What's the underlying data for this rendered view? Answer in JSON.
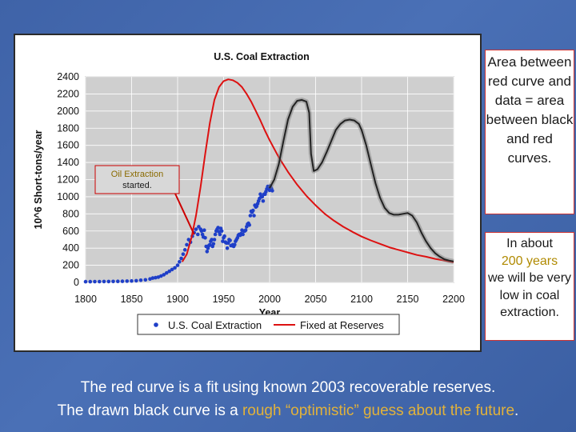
{
  "chart_data": {
    "type": "line",
    "title": "U.S. Coal Extraction",
    "xlabel": "Year",
    "ylabel": "10^6 Short-tons/year",
    "xlim": [
      1800,
      2200
    ],
    "ylim": [
      0,
      2400
    ],
    "xticks": [
      "1800",
      "1850",
      "1900",
      "1950",
      "2000",
      "2050",
      "2100",
      "2150",
      "2200"
    ],
    "yticks": [
      "0",
      "200",
      "400",
      "600",
      "800",
      "1000",
      "1200",
      "1400",
      "1600",
      "1800",
      "2000",
      "2200",
      "2400"
    ],
    "grid": true,
    "legend_position": "bottom",
    "annotation": {
      "label": "Oil Extraction started.",
      "x": 1918,
      "y": 560,
      "color": "#cc0000"
    },
    "series": [
      {
        "name": "U.S. Coal Extraction",
        "style": "points",
        "color": "#1f3fc8",
        "points": [
          [
            1800,
            8
          ],
          [
            1805,
            8
          ],
          [
            1810,
            9
          ],
          [
            1815,
            9
          ],
          [
            1820,
            10
          ],
          [
            1825,
            10
          ],
          [
            1830,
            11
          ],
          [
            1835,
            12
          ],
          [
            1840,
            13
          ],
          [
            1845,
            15
          ],
          [
            1850,
            17
          ],
          [
            1855,
            20
          ],
          [
            1860,
            25
          ],
          [
            1865,
            30
          ],
          [
            1870,
            40
          ],
          [
            1873,
            50
          ],
          [
            1876,
            55
          ],
          [
            1879,
            62
          ],
          [
            1882,
            75
          ],
          [
            1885,
            90
          ],
          [
            1888,
            110
          ],
          [
            1891,
            130
          ],
          [
            1894,
            150
          ],
          [
            1897,
            170
          ],
          [
            1900,
            200
          ],
          [
            1902,
            240
          ],
          [
            1904,
            280
          ],
          [
            1906,
            330
          ],
          [
            1908,
            380
          ],
          [
            1910,
            440
          ],
          [
            1912,
            500
          ],
          [
            1914,
            470
          ],
          [
            1916,
            540
          ],
          [
            1918,
            580
          ],
          [
            1920,
            620
          ],
          [
            1922,
            560
          ],
          [
            1923,
            650
          ],
          [
            1925,
            620
          ],
          [
            1926,
            600
          ],
          [
            1927,
            560
          ],
          [
            1928,
            530
          ],
          [
            1929,
            610
          ],
          [
            1930,
            520
          ],
          [
            1931,
            420
          ],
          [
            1932,
            360
          ],
          [
            1933,
            400
          ],
          [
            1934,
            430
          ],
          [
            1935,
            440
          ],
          [
            1936,
            480
          ],
          [
            1937,
            500
          ],
          [
            1938,
            420
          ],
          [
            1939,
            450
          ],
          [
            1940,
            500
          ],
          [
            1941,
            560
          ],
          [
            1942,
            600
          ],
          [
            1943,
            620
          ],
          [
            1944,
            640
          ],
          [
            1945,
            590
          ],
          [
            1946,
            560
          ],
          [
            1947,
            630
          ],
          [
            1948,
            600
          ],
          [
            1949,
            480
          ],
          [
            1950,
            520
          ],
          [
            1951,
            540
          ],
          [
            1952,
            470
          ],
          [
            1953,
            460
          ],
          [
            1954,
            400
          ],
          [
            1955,
            460
          ],
          [
            1956,
            500
          ],
          [
            1957,
            490
          ],
          [
            1958,
            430
          ],
          [
            1959,
            430
          ],
          [
            1960,
            440
          ],
          [
            1961,
            420
          ],
          [
            1962,
            440
          ],
          [
            1963,
            480
          ],
          [
            1964,
            500
          ],
          [
            1965,
            520
          ],
          [
            1966,
            550
          ],
          [
            1967,
            560
          ],
          [
            1968,
            550
          ],
          [
            1969,
            570
          ],
          [
            1970,
            610
          ],
          [
            1971,
            560
          ],
          [
            1972,
            600
          ],
          [
            1973,
            600
          ],
          [
            1974,
            610
          ],
          [
            1975,
            650
          ],
          [
            1976,
            680
          ],
          [
            1977,
            690
          ],
          [
            1978,
            670
          ],
          [
            1979,
            780
          ],
          [
            1980,
            830
          ],
          [
            1981,
            820
          ],
          [
            1982,
            840
          ],
          [
            1983,
            780
          ],
          [
            1984,
            900
          ],
          [
            1985,
            880
          ],
          [
            1986,
            890
          ],
          [
            1987,
            920
          ],
          [
            1988,
            950
          ],
          [
            1989,
            980
          ],
          [
            1990,
            1030
          ],
          [
            1991,
            1000
          ],
          [
            1992,
            1000
          ],
          [
            1993,
            950
          ],
          [
            1994,
            1030
          ],
          [
            1995,
            1030
          ],
          [
            1996,
            1060
          ],
          [
            1997,
            1090
          ],
          [
            1998,
            1120
          ],
          [
            1999,
            1100
          ],
          [
            2000,
            1075
          ],
          [
            2001,
            1125
          ],
          [
            2002,
            1095
          ],
          [
            2003,
            1070
          ]
        ]
      },
      {
        "name": "Fixed at Reserves",
        "style": "line",
        "color": "#dd1111",
        "points": [
          [
            1905,
            240
          ],
          [
            1910,
            330
          ],
          [
            1915,
            520
          ],
          [
            1920,
            780
          ],
          [
            1925,
            1120
          ],
          [
            1930,
            1500
          ],
          [
            1935,
            1860
          ],
          [
            1940,
            2130
          ],
          [
            1945,
            2280
          ],
          [
            1950,
            2350
          ],
          [
            1955,
            2370
          ],
          [
            1960,
            2360
          ],
          [
            1965,
            2330
          ],
          [
            1970,
            2280
          ],
          [
            1975,
            2200
          ],
          [
            1980,
            2110
          ],
          [
            1985,
            2000
          ],
          [
            1990,
            1890
          ],
          [
            1995,
            1770
          ],
          [
            2000,
            1660
          ],
          [
            2010,
            1460
          ],
          [
            2020,
            1290
          ],
          [
            2030,
            1140
          ],
          [
            2040,
            1010
          ],
          [
            2050,
            900
          ],
          [
            2060,
            800
          ],
          [
            2070,
            720
          ],
          [
            2080,
            650
          ],
          [
            2090,
            590
          ],
          [
            2100,
            535
          ],
          [
            2110,
            490
          ],
          [
            2120,
            450
          ],
          [
            2130,
            410
          ],
          [
            2140,
            380
          ],
          [
            2150,
            350
          ],
          [
            2160,
            320
          ],
          [
            2170,
            300
          ],
          [
            2180,
            275
          ],
          [
            2190,
            255
          ],
          [
            2200,
            235
          ]
        ]
      },
      {
        "style": "line",
        "color": "#222222",
        "points": [
          [
            2000,
            1100
          ],
          [
            2005,
            1200
          ],
          [
            2010,
            1380
          ],
          [
            2015,
            1650
          ],
          [
            2020,
            1900
          ],
          [
            2025,
            2050
          ],
          [
            2030,
            2120
          ],
          [
            2035,
            2130
          ],
          [
            2040,
            2110
          ],
          [
            2043,
            1980
          ],
          [
            2045,
            1500
          ],
          [
            2048,
            1300
          ],
          [
            2052,
            1320
          ],
          [
            2057,
            1400
          ],
          [
            2062,
            1520
          ],
          [
            2067,
            1650
          ],
          [
            2072,
            1780
          ],
          [
            2077,
            1850
          ],
          [
            2082,
            1890
          ],
          [
            2087,
            1900
          ],
          [
            2092,
            1890
          ],
          [
            2097,
            1850
          ],
          [
            2100,
            1780
          ],
          [
            2105,
            1600
          ],
          [
            2110,
            1380
          ],
          [
            2115,
            1160
          ],
          [
            2120,
            990
          ],
          [
            2125,
            870
          ],
          [
            2130,
            810
          ],
          [
            2135,
            790
          ],
          [
            2140,
            790
          ],
          [
            2145,
            800
          ],
          [
            2150,
            810
          ],
          [
            2155,
            780
          ],
          [
            2160,
            700
          ],
          [
            2165,
            580
          ],
          [
            2170,
            480
          ],
          [
            2175,
            400
          ],
          [
            2180,
            340
          ],
          [
            2185,
            300
          ],
          [
            2190,
            270
          ],
          [
            2195,
            255
          ],
          [
            2200,
            245
          ]
        ]
      }
    ]
  },
  "notes": {
    "area_box": "Area between red curve and data = area between black and red curves.",
    "years_box_pre": "In about",
    "years_box_highlight": "200 years",
    "years_box_post": "we will be very low in coal extraction."
  },
  "caption": {
    "line1": "The red curve is a fit using known 2003 recoverable reserves.",
    "line2_pre": "The drawn black curve is a",
    "line2_highlight": "rough “optimistic” guess about the future",
    "line2_post": "."
  }
}
